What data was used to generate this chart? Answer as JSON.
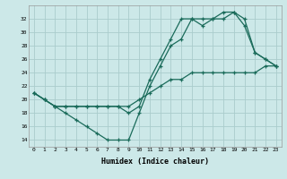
{
  "xlabel": "Humidex (Indice chaleur)",
  "bg_color": "#cce8e8",
  "grid_color": "#aacccc",
  "line_color": "#1a6b5a",
  "xlim": [
    -0.5,
    23.5
  ],
  "ylim": [
    13,
    34
  ],
  "xticks": [
    0,
    1,
    2,
    3,
    4,
    5,
    6,
    7,
    8,
    9,
    10,
    11,
    12,
    13,
    14,
    15,
    16,
    17,
    18,
    19,
    20,
    21,
    22,
    23
  ],
  "yticks": [
    14,
    16,
    18,
    20,
    22,
    24,
    26,
    28,
    30,
    32
  ],
  "line1_x": [
    0,
    1,
    2,
    3,
    4,
    5,
    6,
    7,
    8,
    9,
    10,
    11,
    12,
    13,
    14,
    15,
    16,
    17,
    18,
    19,
    20,
    21,
    22,
    23
  ],
  "line1_y": [
    21,
    20,
    19,
    18,
    17,
    16,
    15,
    14,
    14,
    14,
    18,
    22,
    25,
    28,
    29,
    32,
    31,
    32,
    32,
    33,
    31,
    27,
    26,
    25
  ],
  "line2_x": [
    0,
    1,
    2,
    3,
    4,
    5,
    6,
    7,
    8,
    9,
    10,
    11,
    12,
    13,
    14,
    15,
    16,
    17,
    18,
    19,
    20,
    21,
    22,
    23
  ],
  "line2_y": [
    21,
    20,
    19,
    19,
    19,
    19,
    19,
    19,
    19,
    18,
    19,
    23,
    26,
    29,
    32,
    32,
    32,
    32,
    33,
    33,
    32,
    27,
    26,
    25
  ],
  "line3_x": [
    0,
    1,
    2,
    3,
    4,
    5,
    6,
    7,
    8,
    9,
    10,
    11,
    12,
    13,
    14,
    15,
    16,
    17,
    18,
    19,
    20,
    21,
    22,
    23
  ],
  "line3_y": [
    21,
    20,
    19,
    19,
    19,
    19,
    19,
    19,
    19,
    19,
    20,
    21,
    22,
    23,
    23,
    24,
    24,
    24,
    24,
    24,
    24,
    24,
    25,
    25
  ]
}
